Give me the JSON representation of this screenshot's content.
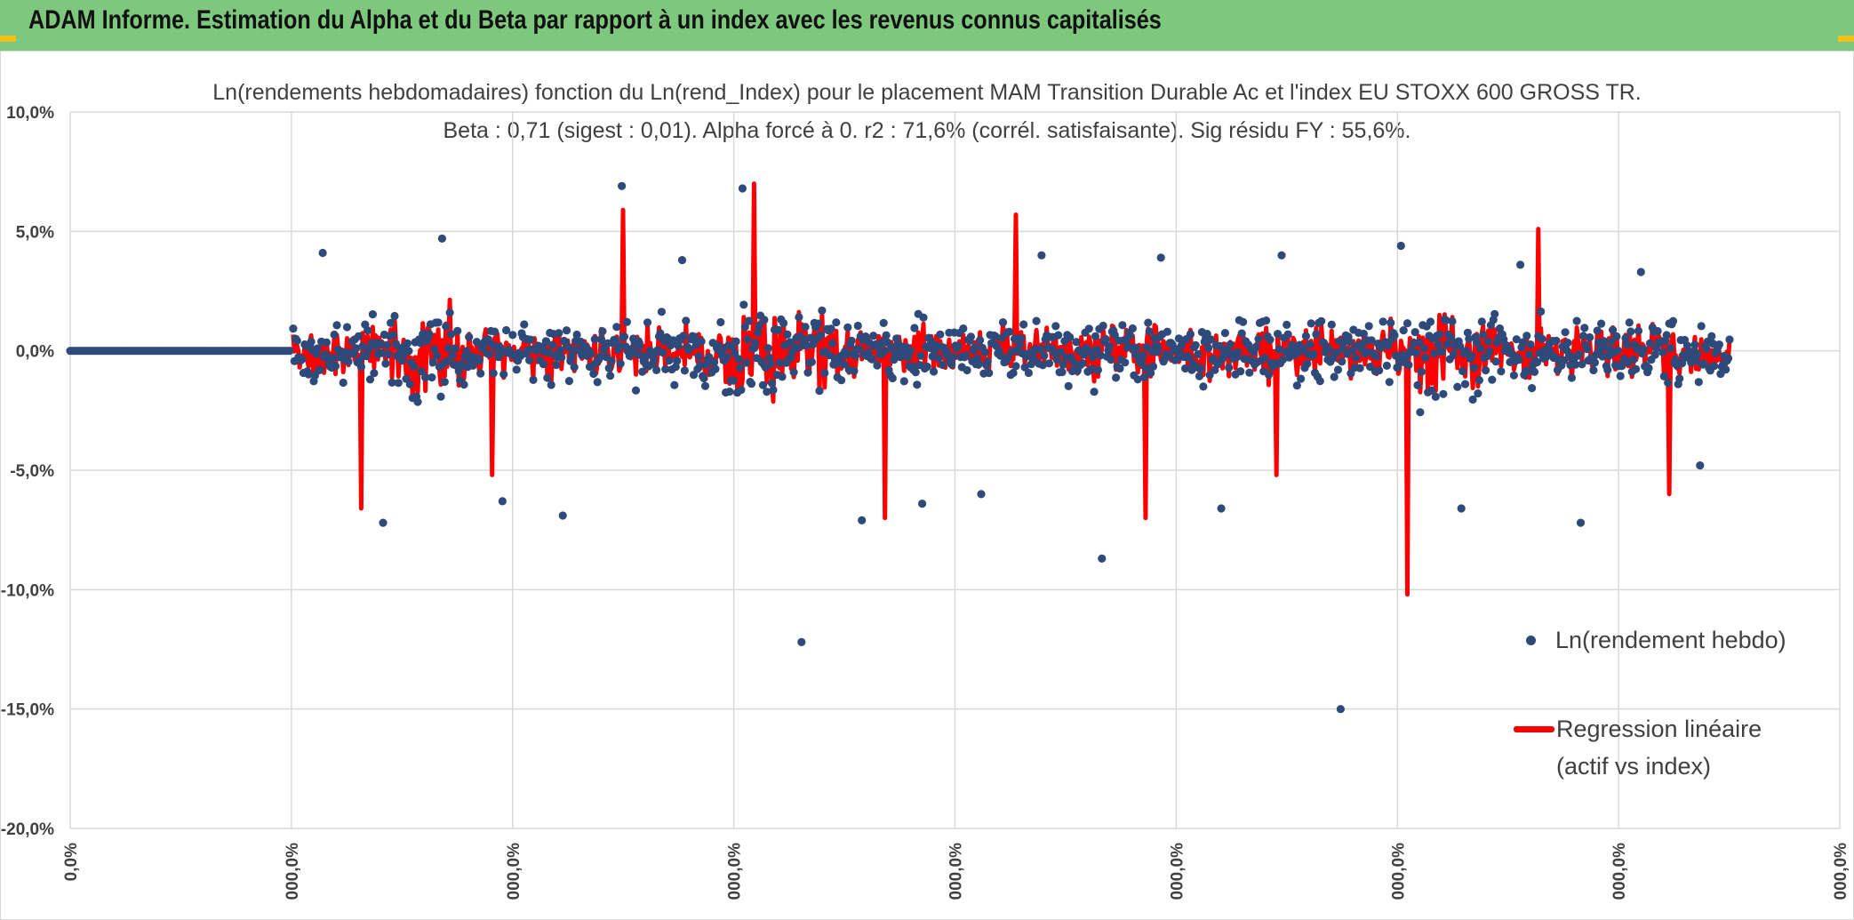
{
  "header": {
    "title": "ADAM Informe. Estimation du Alpha et du Beta par rapport à un index avec les revenus connus capitalisés"
  },
  "chart": {
    "title_line1": "Ln(rendements hebdomadaires) fonction du Ln(rend_Index) pour le placement MAM Transition Durable Ac et l'index EU STOXX 600 GROSS TR.",
    "title_line2": "Beta : 0,71 (sigest : 0,01). Alpha forcé à 0. r2 : 71,6% (corrél. satisfaisante). Sig résidu FY : 55,6%.",
    "legend": {
      "series1": "Ln(rendement hebdo)",
      "series2_line1": "Regression linéaire",
      "series2_line2": "(actif vs index)"
    }
  },
  "chart_data": {
    "type": "scatter",
    "y_tick_labels": [
      "10,0%",
      "5,0%",
      "0,0%",
      "-5,0%",
      "-10,0%",
      "-15,0%",
      "-20,0%"
    ],
    "y_ticks": [
      10,
      5,
      0,
      -5,
      -10,
      -15,
      -20
    ],
    "ylim": [
      -20,
      10
    ],
    "x_tick_labels": [
      "0,0%",
      "000,0%",
      "000,0%",
      "000,0%",
      "000,0%",
      "000,0%",
      "000,0%",
      "000,0%",
      "000,0%"
    ],
    "grid": true,
    "legend_position": "right",
    "series": [
      {
        "name": "Ln(rendement hebdo)",
        "kind": "scatter",
        "color": "#2e4a7a",
        "flat_zero_points": 100,
        "notable_values": [
          4.1,
          -7.2,
          4.7,
          -6.3,
          -6.9,
          6.9,
          3.8,
          6.8,
          -12.2,
          -7.1,
          -6.4,
          -6.0,
          4.0,
          -8.7,
          3.9,
          -6.6,
          4.0,
          -15.0,
          4.4,
          -6.6,
          3.6,
          -7.2,
          3.3,
          -4.8
        ]
      },
      {
        "name": "Regression linéaire (actif vs index)",
        "kind": "line",
        "color": "#ff0000",
        "beta": 0.71,
        "alpha": 0,
        "notable_values": [
          -6.6,
          -5.2,
          5.9,
          7.0,
          -7.0,
          5.7,
          -7.0,
          -5.2,
          -10.2,
          5.1,
          -6.0
        ]
      }
    ]
  },
  "colors": {
    "banner": "#7dc87d",
    "corner_accent": "#f2c01a",
    "scatter": "#2e4a7a",
    "regression": "#ff0000",
    "grid": "#d9d9d9",
    "text": "#404040"
  }
}
